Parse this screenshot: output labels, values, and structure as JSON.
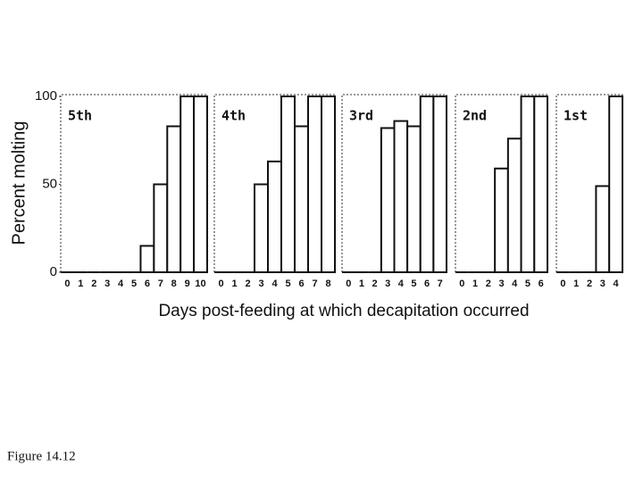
{
  "chart_data": [
    {
      "type": "bar",
      "title": "5th",
      "categories": [
        "0",
        "1",
        "2",
        "3",
        "4",
        "5",
        "6",
        "7",
        "8",
        "9",
        "10"
      ],
      "values": [
        0,
        0,
        0,
        0,
        0,
        0,
        15,
        50,
        83,
        100,
        100
      ],
      "ylim": [
        0,
        100
      ],
      "yticks": [
        0,
        50,
        100
      ]
    },
    {
      "type": "bar",
      "title": "4th",
      "categories": [
        "0",
        "1",
        "2",
        "3",
        "4",
        "5",
        "6",
        "7",
        "8"
      ],
      "values": [
        0,
        0,
        0,
        50,
        63,
        100,
        83,
        100,
        100
      ],
      "ylim": [
        0,
        100
      ]
    },
    {
      "type": "bar",
      "title": "3rd",
      "categories": [
        "0",
        "1",
        "2",
        "3",
        "4",
        "5",
        "6",
        "7"
      ],
      "values": [
        0,
        0,
        0,
        82,
        86,
        83,
        100,
        100
      ],
      "ylim": [
        0,
        100
      ]
    },
    {
      "type": "bar",
      "title": "2nd",
      "categories": [
        "0",
        "1",
        "2",
        "3",
        "4",
        "5",
        "6"
      ],
      "values": [
        0,
        0,
        0,
        59,
        76,
        100,
        100
      ],
      "ylim": [
        0,
        100
      ]
    },
    {
      "type": "bar",
      "title": "1st",
      "categories": [
        "0",
        "1",
        "2",
        "3",
        "4"
      ],
      "values": [
        0,
        0,
        0,
        49,
        100
      ],
      "ylim": [
        0,
        100
      ]
    }
  ],
  "ylabel": "Percent molting",
  "xlabel": "Days post-feeding at which decapitation occurred",
  "caption": "Figure 14.12"
}
